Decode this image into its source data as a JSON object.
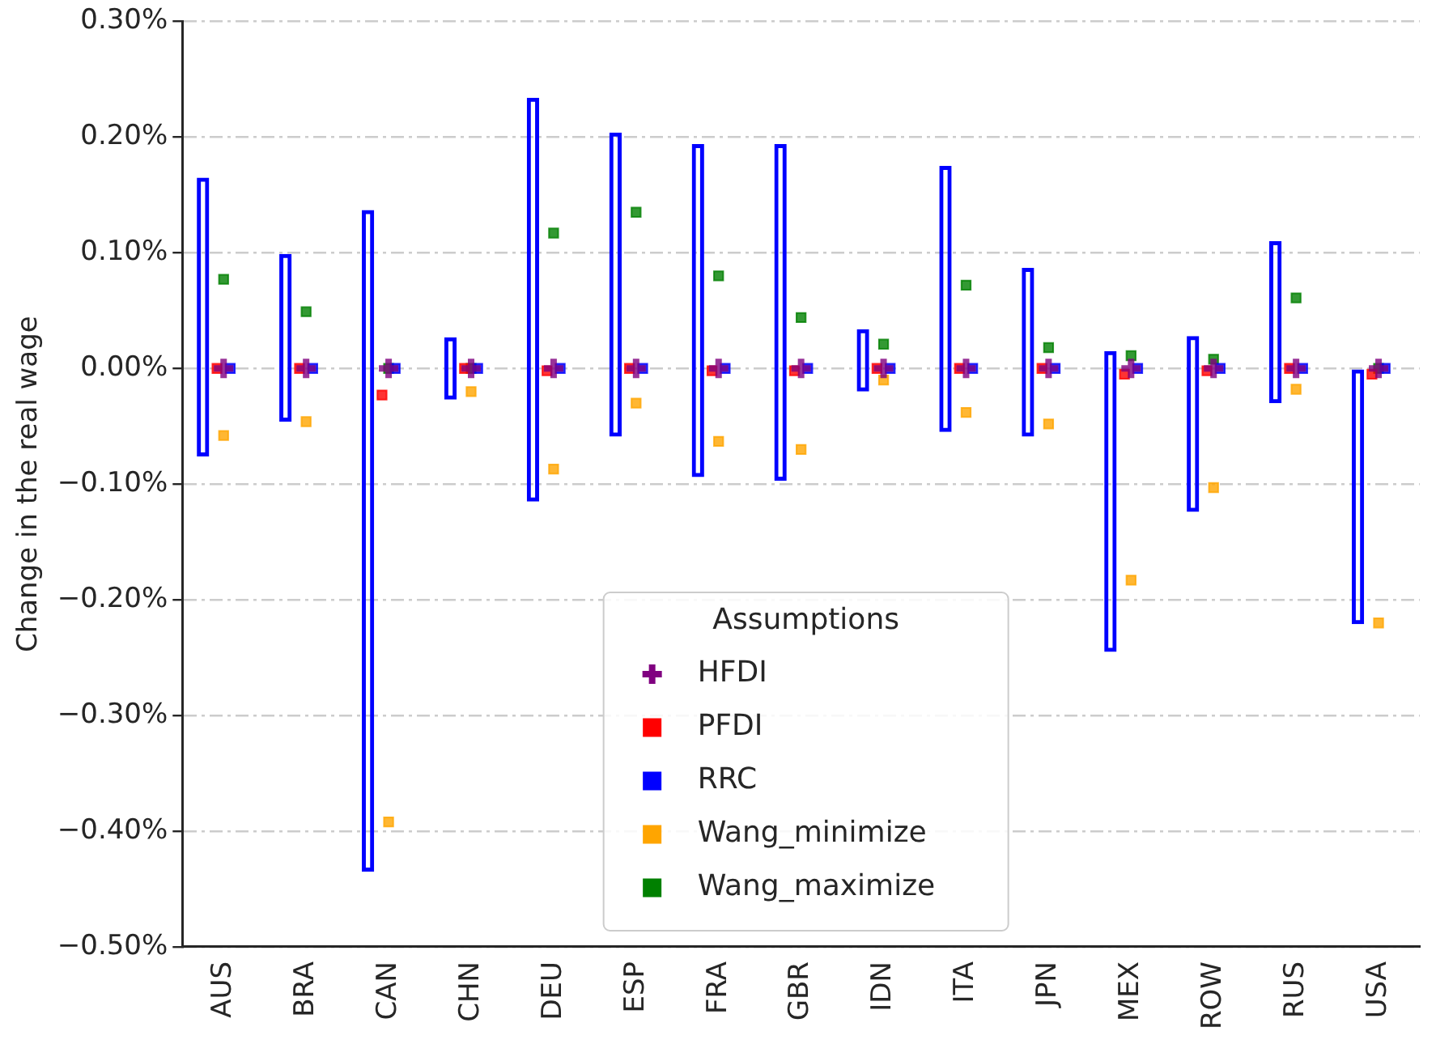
{
  "chart_data": {
    "type": "bar",
    "ylabel": "Change in the real wage",
    "legend_title": "Assumptions",
    "legend": "bottom",
    "grid": "y",
    "categories": [
      "AUS",
      "BRA",
      "CAN",
      "CHN",
      "DEU",
      "ESP",
      "FRA",
      "GBR",
      "IDN",
      "ITA",
      "JPN",
      "MEX",
      "ROW",
      "RUS",
      "USA"
    ],
    "ylim": [
      -0.5,
      0.3
    ],
    "yticks": [
      {
        "value": -0.5,
        "label": "−0.50%"
      },
      {
        "value": -0.4,
        "label": "−0.40%"
      },
      {
        "value": -0.3,
        "label": "−0.30%"
      },
      {
        "value": -0.2,
        "label": "−0.20%"
      },
      {
        "value": -0.1,
        "label": "−0.10%"
      },
      {
        "value": 0,
        "label": "0.00%"
      },
      {
        "value": 0.1,
        "label": "0.10%"
      },
      {
        "value": 0.2,
        "label": "0.20%"
      },
      {
        "value": 0.3,
        "label": "0.30%"
      }
    ],
    "series": [
      {
        "color": "#0000ff",
        "base": [
          -0.076,
          -0.046,
          -0.435,
          -0.027,
          -0.115,
          -0.059,
          -0.094,
          -0.097,
          -0.02,
          -0.055,
          -0.059,
          -0.245,
          -0.124,
          -0.03,
          -0.221
        ],
        "values": [
          0.241,
          0.145,
          0.572,
          0.054,
          0.349,
          0.263,
          0.288,
          0.291,
          0.054,
          0.23,
          0.146,
          0.26,
          0.152,
          0.14,
          0.221
        ]
      },
      {
        "type": "scatter",
        "name": "HFDI",
        "color": "#800080",
        "marker": "cross",
        "values": [
          0,
          0,
          0,
          0,
          0,
          0,
          0,
          0,
          0,
          0,
          0,
          0,
          0,
          0,
          0
        ]
      },
      {
        "type": "scatter",
        "name": "PFDI",
        "color": "#ff0000",
        "marker": "square",
        "values": [
          0,
          0,
          -0.023,
          0,
          -0.002,
          0,
          -0.002,
          -0.002,
          0,
          0,
          0,
          -0.005,
          -0.002,
          0,
          -0.005
        ]
      },
      {
        "type": "scatter",
        "name": "RRC",
        "color": "#0000ff",
        "marker": "square",
        "values": [
          0,
          0,
          0,
          0,
          0,
          0,
          0,
          0,
          0,
          0,
          0,
          0,
          0,
          0,
          0
        ]
      },
      {
        "type": "scatter",
        "name": "Wang_minimize",
        "color": "#ffa500",
        "marker": "square",
        "values": [
          -0.058,
          -0.046,
          -0.392,
          -0.02,
          -0.087,
          -0.03,
          -0.063,
          -0.07,
          -0.01,
          -0.038,
          -0.048,
          -0.183,
          -0.103,
          -0.018,
          -0.22
        ]
      },
      {
        "type": "scatter",
        "name": "Wang_maximize",
        "color": "#008000",
        "marker": "square",
        "values": [
          0.077,
          0.049,
          0,
          0,
          0.117,
          0.135,
          0.08,
          0.044,
          0.021,
          0.072,
          0.018,
          0.011,
          0.008,
          0.061,
          0
        ]
      }
    ]
  }
}
